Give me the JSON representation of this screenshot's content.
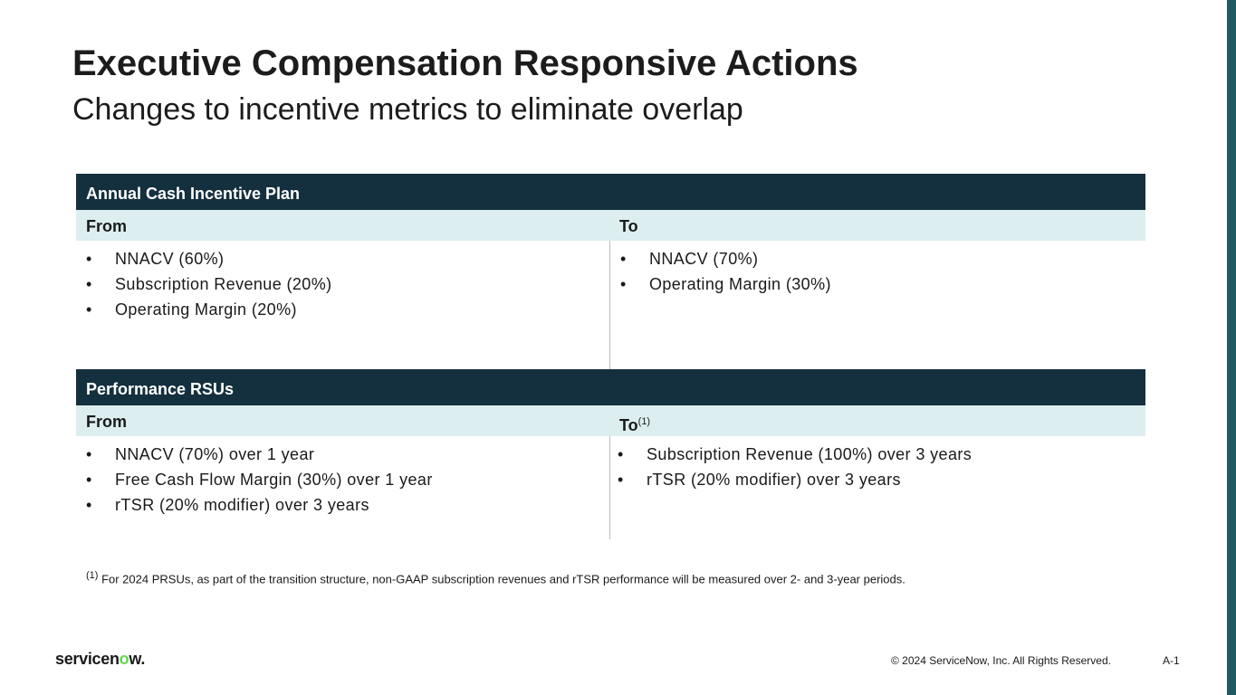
{
  "title": "Executive Compensation Responsive Actions",
  "subtitle": "Changes to incentive metrics to eliminate overlap",
  "tables": [
    {
      "header": "Annual Cash Incentive Plan",
      "from_label": "From",
      "to_label": "To",
      "to_sup": "",
      "from": [
        "NNACV (60%)",
        "Subscription Revenue (20%)",
        "Operating Margin (20%)"
      ],
      "to": [
        "NNACV (70%)",
        "Operating Margin (30%)"
      ]
    },
    {
      "header": "Performance RSUs",
      "from_label": "From",
      "to_label": "To",
      "to_sup": "(1)",
      "from": [
        "NNACV (70%) over 1 year",
        "Free Cash Flow Margin (30%) over 1 year",
        "rTSR (20% modifier) over 3 years"
      ],
      "to": [
        "Subscription Revenue (100%) over 3 years",
        "rTSR (20% modifier) over 3 years"
      ]
    }
  ],
  "footnote": {
    "marker": "(1)",
    "text": " For 2024 PRSUs, as part of the transition structure, non-GAAP subscription revenues and rTSR performance will be measured over 2- and 3-year periods."
  },
  "footer": {
    "logo_a": "servicen",
    "logo_o": "o",
    "logo_b": "w.",
    "copyright": "© 2024 ServiceNow, Inc. All Rights Reserved.",
    "page": "A-1"
  },
  "colors": {
    "header": "#14303f",
    "subheader": "#ddeef0",
    "accent_bar": "#1f5a63",
    "logo_accent": "#62d84e"
  }
}
